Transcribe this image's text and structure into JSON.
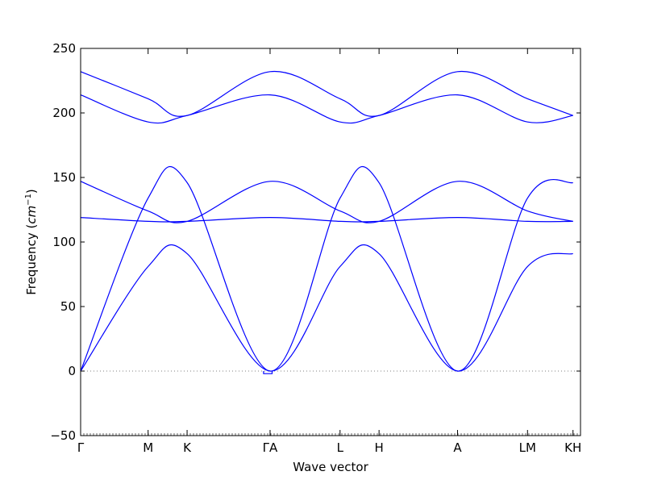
{
  "chart_data": {
    "type": "line",
    "title": "",
    "xlabel": "Wave vector",
    "ylabel": "Frequency",
    "ylabel_unit": "cm",
    "ylabel_unit_exponent": "−1",
    "ylim": [
      -50,
      250
    ],
    "xlim": [
      0,
      1
    ],
    "grid": false,
    "legend": "none",
    "line_color": "#0000ff",
    "zero_line_color": "#808080",
    "y_ticks": [
      -50,
      0,
      50,
      100,
      150,
      200,
      250
    ],
    "y_tick_labels": [
      "−50",
      "0",
      "50",
      "100",
      "150",
      "200",
      "250"
    ],
    "x_ticks": [
      {
        "label": "Γ",
        "x": 0.0
      },
      {
        "label": "M",
        "x": 0.135
      },
      {
        "label": "K",
        "x": 0.213
      },
      {
        "label": "ΓA",
        "x": 0.379
      },
      {
        "label": "L",
        "x": 0.519
      },
      {
        "label": "H",
        "x": 0.597
      },
      {
        "label": "A",
        "x": 0.754
      },
      {
        "label": "LM",
        "x": 0.894
      },
      {
        "label": "KH",
        "x": 0.985
      }
    ],
    "series": [
      {
        "values_x": [
          0,
          0.135,
          0.213,
          0.379,
          0.519,
          0.597,
          0.754,
          0.894,
          0.985
        ],
        "values": [
          232,
          211,
          198,
          232,
          211,
          198,
          232,
          211,
          198
        ]
      },
      {
        "values_x": [
          0,
          0.135,
          0.213,
          0.379,
          0.519,
          0.597,
          0.754,
          0.894,
          0.985
        ],
        "values": [
          214,
          193,
          198,
          214,
          193,
          198,
          214,
          193,
          198
        ]
      },
      {
        "values_x": [
          0,
          0.135,
          0.213,
          0.379,
          0.519,
          0.597,
          0.754,
          0.894,
          0.985
        ],
        "values": [
          147,
          124,
          116,
          147,
          124,
          116,
          147,
          124,
          116
        ]
      },
      {
        "values_x": [
          0,
          0.135,
          0.213,
          0.379,
          0.519,
          0.597,
          0.754,
          0.894,
          0.985
        ],
        "values": [
          119,
          116,
          116,
          119,
          116,
          116,
          119,
          116,
          116
        ]
      },
      {
        "values_x": [
          0,
          0.135,
          0.213,
          0.379,
          0.519,
          0.597,
          0.754,
          0.894,
          0.985
        ],
        "values": [
          0,
          134,
          146,
          0,
          134,
          146,
          0,
          134,
          146
        ]
      },
      {
        "values_x": [
          0,
          0.135,
          0.213,
          0.379,
          0.519,
          0.597,
          0.754,
          0.894,
          0.985
        ],
        "values": [
          0,
          81,
          91,
          0,
          81,
          91,
          0,
          81,
          91
        ]
      },
      {
        "values_x": [
          0.366,
          0.366,
          0.383,
          0.383
        ],
        "values": [
          0,
          -2,
          -2,
          0
        ]
      }
    ]
  }
}
